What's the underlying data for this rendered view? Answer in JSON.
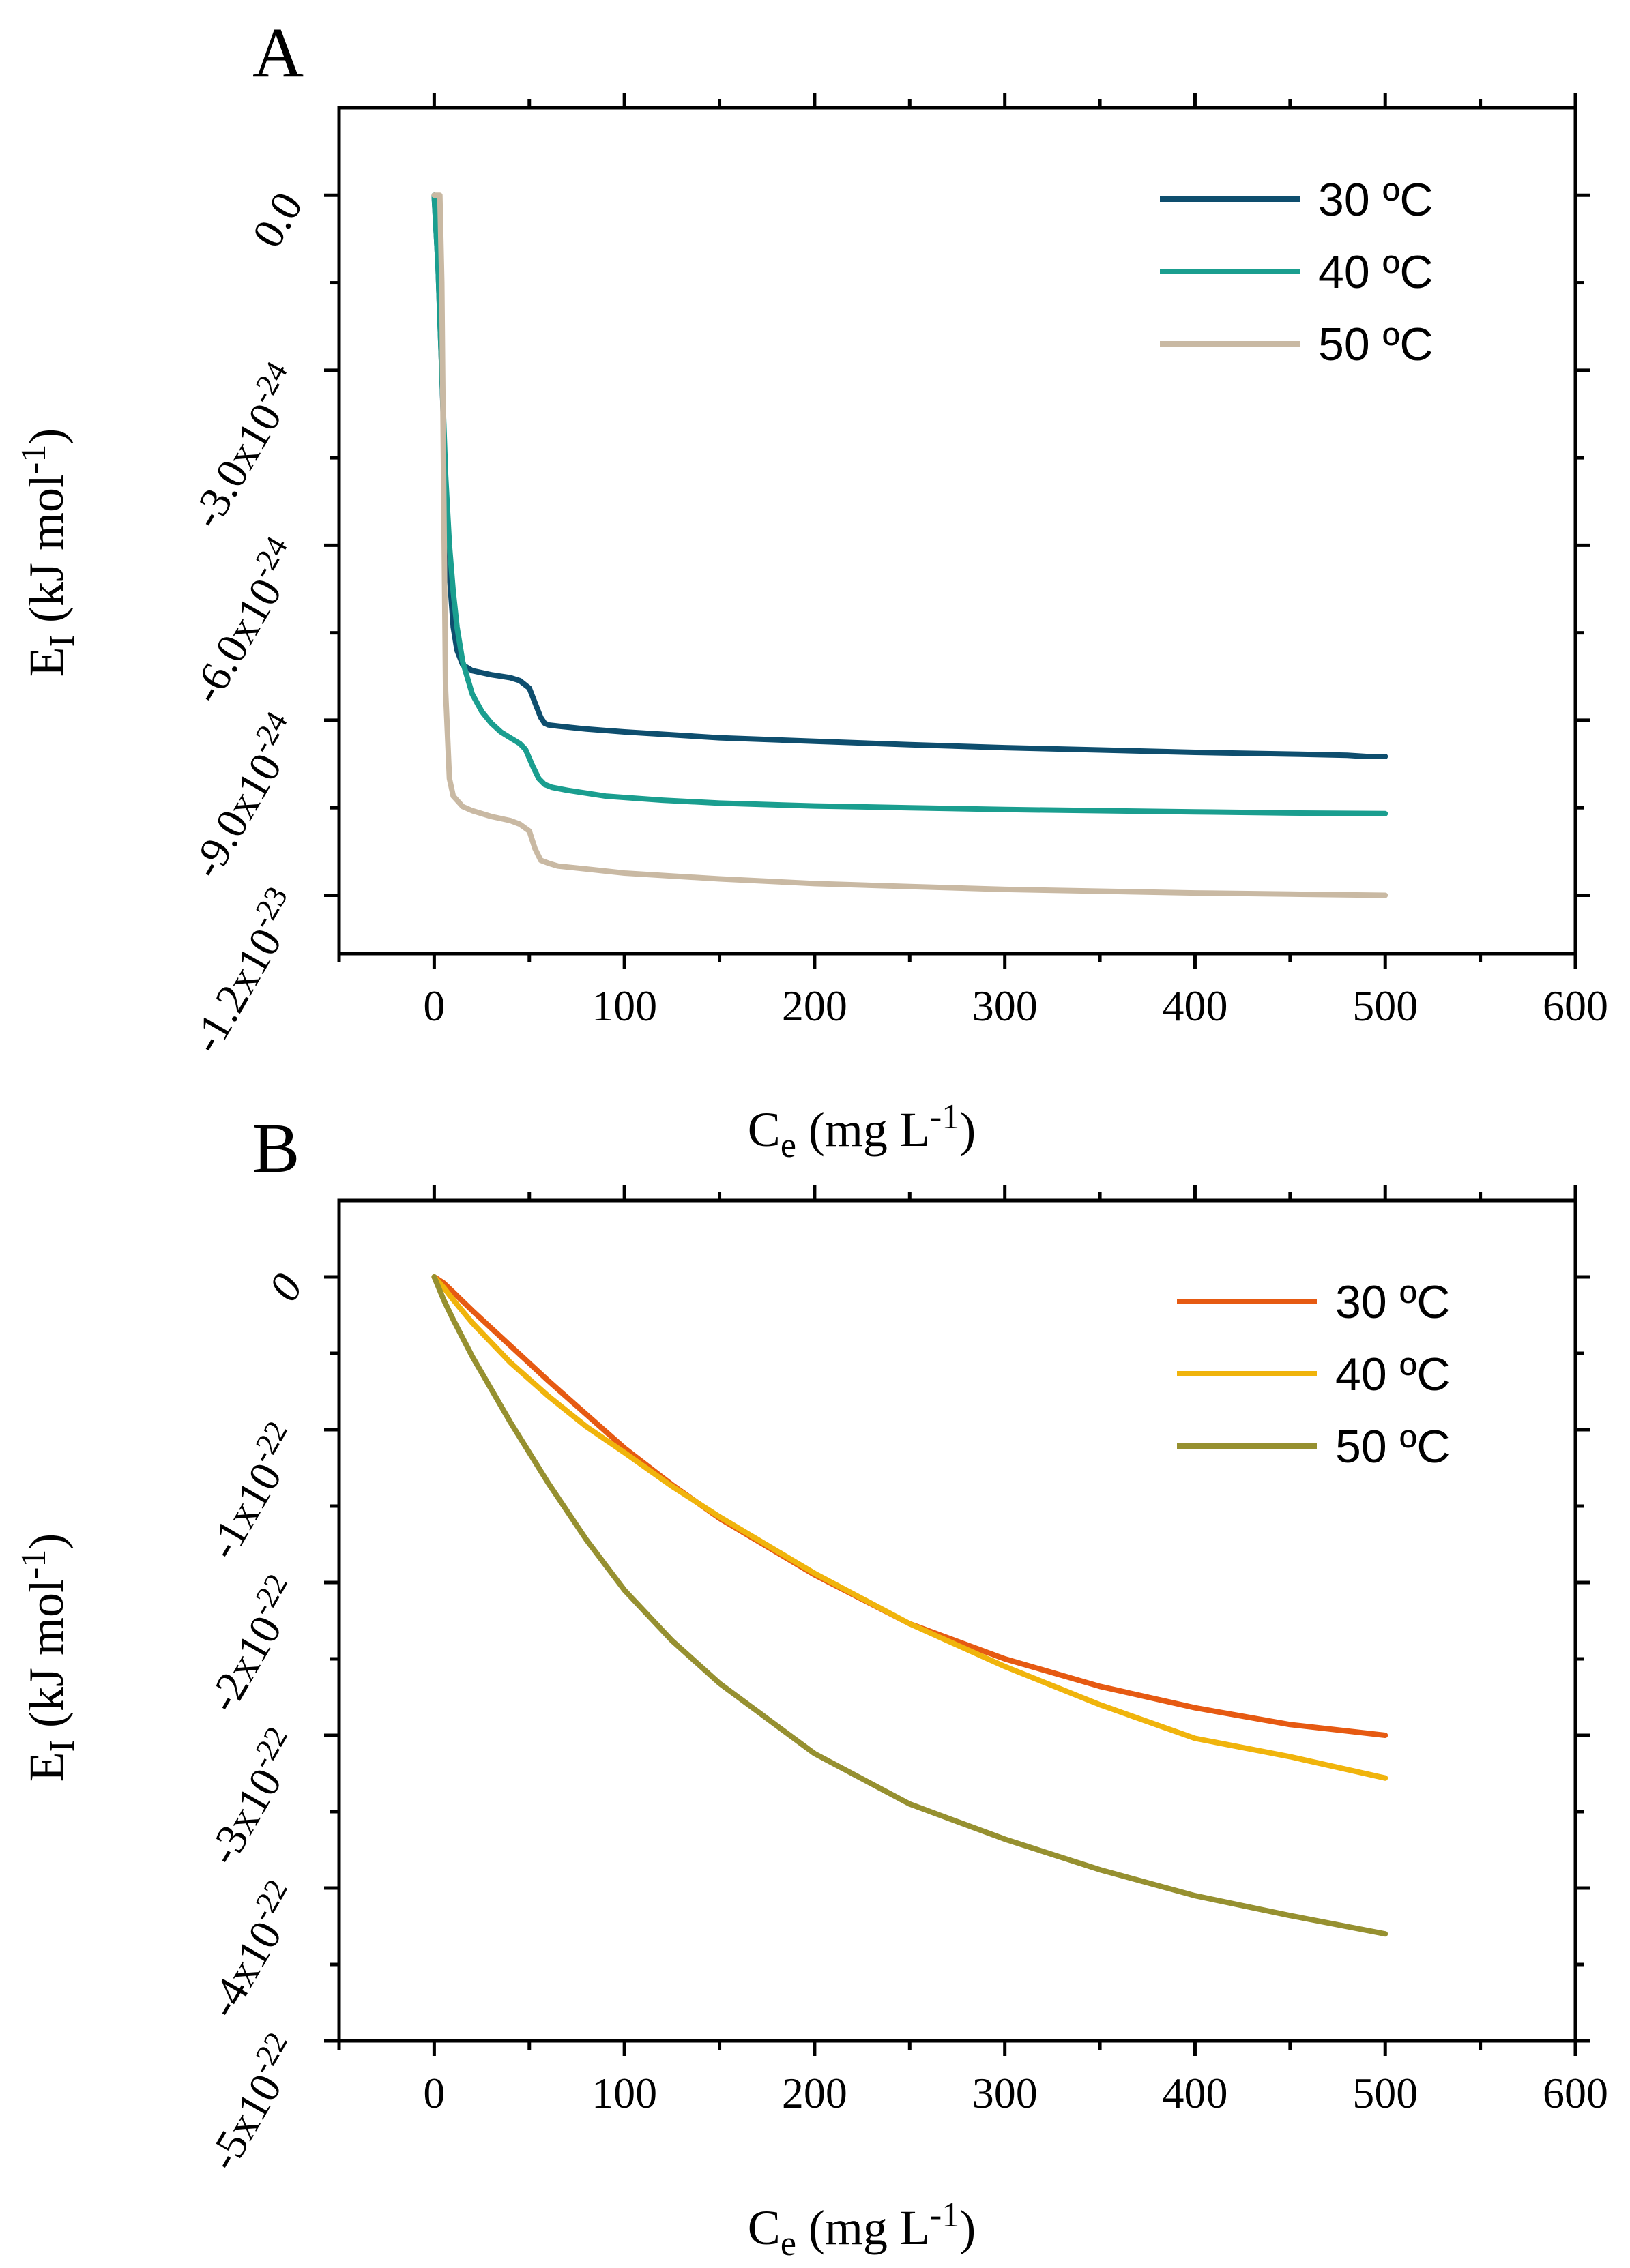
{
  "chart_data": [
    {
      "panel": "A",
      "type": "line",
      "title": "",
      "xlabel": "C",
      "xlabel_sub": "e",
      "xlabel_unit": " (mg L",
      "xlabel_sup": "-1",
      "xlabel_close": ")",
      "ylabel": "E",
      "ylabel_sub": "I",
      "ylabel_unit": " (kJ mol",
      "ylabel_sup": "-1",
      "ylabel_close": ")",
      "xlim": [
        -50,
        600
      ],
      "ylim": [
        -1.3e-23,
        1.5e-24
      ],
      "xticks": [
        0,
        100,
        200,
        300,
        400,
        500,
        600
      ],
      "xtick_labels": [
        "0",
        "100",
        "200",
        "300",
        "400",
        "500",
        "600"
      ],
      "yticks": [
        {
          "value": 0,
          "base": "0.0",
          "exp": ""
        },
        {
          "value": -3e-24,
          "base": "-3.0x10",
          "exp": "-24"
        },
        {
          "value": -6e-24,
          "base": "-6.0x10",
          "exp": "-24"
        },
        {
          "value": -9e-24,
          "base": "-9.0x10",
          "exp": "-24"
        },
        {
          "value": -1.2e-23,
          "base": "-1.2x10",
          "exp": "-23"
        }
      ],
      "yminor": [
        -1.5e-24,
        -4.5e-24,
        -7.5e-24,
        -1.05e-23
      ],
      "legend_position": "top-right",
      "series": [
        {
          "name": "30 ºC",
          "color": "#0e4e6e",
          "x": [
            0,
            2,
            4,
            6,
            8,
            10,
            12,
            15,
            20,
            30,
            40,
            45,
            50,
            53,
            56,
            58,
            60,
            65,
            80,
            100,
            150,
            200,
            250,
            300,
            350,
            400,
            450,
            480,
            490,
            500
          ],
          "y": [
            0,
            -1.2e-24,
            -3e-24,
            -5e-24,
            -6.5e-24,
            -7.4e-24,
            -7.8e-24,
            -8.05e-24,
            -8.15e-24,
            -8.22e-24,
            -8.27e-24,
            -8.32e-24,
            -8.45e-24,
            -8.7e-24,
            -8.95e-24,
            -9.05e-24,
            -9.08e-24,
            -9.1e-24,
            -9.15e-24,
            -9.2e-24,
            -9.3e-24,
            -9.36e-24,
            -9.42e-24,
            -9.47e-24,
            -9.51e-24,
            -9.55e-24,
            -9.58e-24,
            -9.6e-24,
            -9.62e-24,
            -9.62e-24
          ]
        },
        {
          "name": "40 ºC",
          "color": "#1a9e8f",
          "x": [
            0,
            2,
            4,
            6,
            8,
            10,
            12,
            15,
            20,
            25,
            30,
            35,
            40,
            45,
            48,
            52,
            55,
            58,
            62,
            70,
            90,
            120,
            150,
            200,
            250,
            300,
            350,
            400,
            450,
            500
          ],
          "y": [
            0,
            -1.2e-24,
            -3e-24,
            -4.8e-24,
            -6e-24,
            -6.8e-24,
            -7.4e-24,
            -8e-24,
            -8.55e-24,
            -8.85e-24,
            -9.05e-24,
            -9.2e-24,
            -9.3e-24,
            -9.4e-24,
            -9.5e-24,
            -9.8e-24,
            -1e-23,
            -1.01e-23,
            -1.015e-23,
            -1.02e-23,
            -1.03e-23,
            -1.037e-23,
            -1.042e-23,
            -1.047e-23,
            -1.05e-23,
            -1.053e-23,
            -1.055e-23,
            -1.057e-23,
            -1.059e-23,
            -1.06e-23
          ]
        },
        {
          "name": "50 ºC",
          "color": "#c9b9a3",
          "x": [
            0,
            3,
            4,
            5,
            6,
            8,
            10,
            15,
            20,
            30,
            40,
            45,
            50,
            53,
            56,
            60,
            65,
            80,
            100,
            150,
            200,
            250,
            300,
            350,
            400,
            450,
            500
          ],
          "y": [
            0,
            0,
            -1.5e-24,
            -5e-24,
            -8.5e-24,
            -1e-23,
            -1.03e-23,
            -1.048e-23,
            -1.055e-23,
            -1.065e-23,
            -1.072e-23,
            -1.078e-23,
            -1.09e-23,
            -1.12e-23,
            -1.14e-23,
            -1.145e-23,
            -1.15e-23,
            -1.155e-23,
            -1.162e-23,
            -1.172e-23,
            -1.18e-23,
            -1.185e-23,
            -1.19e-23,
            -1.193e-23,
            -1.196e-23,
            -1.198e-23,
            -1.2e-23
          ]
        }
      ]
    },
    {
      "panel": "B",
      "type": "line",
      "title": "",
      "xlabel": "C",
      "xlabel_sub": "e",
      "xlabel_unit": " (mg L",
      "xlabel_sup": "-1",
      "xlabel_close": ")",
      "ylabel": "E",
      "ylabel_sub": "I",
      "ylabel_unit": " (kJ mol",
      "ylabel_sup": "-1",
      "ylabel_close": ")",
      "xlim": [
        -50,
        600
      ],
      "ylim": [
        -5e-22,
        5e-23
      ],
      "xticks": [
        0,
        100,
        200,
        300,
        400,
        500,
        600
      ],
      "xtick_labels": [
        "0",
        "100",
        "200",
        "300",
        "400",
        "500",
        "600"
      ],
      "yticks": [
        {
          "value": 0,
          "base": "0",
          "exp": ""
        },
        {
          "value": -1e-22,
          "base": "-1x10",
          "exp": "-22"
        },
        {
          "value": -2e-22,
          "base": "-2x10",
          "exp": "-22"
        },
        {
          "value": -3e-22,
          "base": "-3x10",
          "exp": "-22"
        },
        {
          "value": -4e-22,
          "base": "-4x10",
          "exp": "-22"
        },
        {
          "value": -5e-22,
          "base": "-5x10",
          "exp": "-22"
        }
      ],
      "yminor": [
        -5e-23,
        -1.5e-22,
        -2.5e-22,
        -3.5e-22,
        -4.5e-22
      ],
      "legend_position": "top-right",
      "series": [
        {
          "name": "30 ºC",
          "color": "#e65a12",
          "x": [
            0,
            5,
            10,
            20,
            40,
            60,
            80,
            100,
            125,
            150,
            200,
            250,
            300,
            350,
            400,
            450,
            500
          ],
          "y": [
            0,
            -4e-24,
            -1e-23,
            -2.2e-23,
            -4.5e-23,
            -6.8e-23,
            -9e-23,
            -1.12e-22,
            -1.36e-22,
            -1.58e-22,
            -1.95e-22,
            -2.27e-22,
            -2.5e-22,
            -2.68e-22,
            -2.82e-22,
            -2.93e-22,
            -3e-22
          ]
        },
        {
          "name": "40 ºC",
          "color": "#f0b40c",
          "x": [
            0,
            5,
            10,
            20,
            40,
            60,
            80,
            100,
            125,
            150,
            200,
            250,
            300,
            350,
            400,
            450,
            500
          ],
          "y": [
            0,
            -7e-24,
            -1.5e-23,
            -3e-23,
            -5.6e-23,
            -7.8e-23,
            -9.8e-23,
            -1.15e-22,
            -1.37e-22,
            -1.57e-22,
            -1.94e-22,
            -2.27e-22,
            -2.55e-22,
            -2.8e-22,
            -3.02e-22,
            -3.14e-22,
            -3.28e-22
          ]
        },
        {
          "name": "50 ºC",
          "color": "#969030",
          "x": [
            0,
            5,
            10,
            20,
            40,
            60,
            80,
            100,
            125,
            150,
            200,
            250,
            300,
            350,
            400,
            450,
            500
          ],
          "y": [
            0,
            -1.5e-23,
            -2.8e-23,
            -5.2e-23,
            -9.5e-23,
            -1.35e-22,
            -1.72e-22,
            -2.05e-22,
            -2.38e-22,
            -2.66e-22,
            -3.12e-22,
            -3.45e-22,
            -3.68e-22,
            -3.88e-22,
            -4.05e-22,
            -4.18e-22,
            -4.3e-22
          ]
        }
      ]
    }
  ]
}
